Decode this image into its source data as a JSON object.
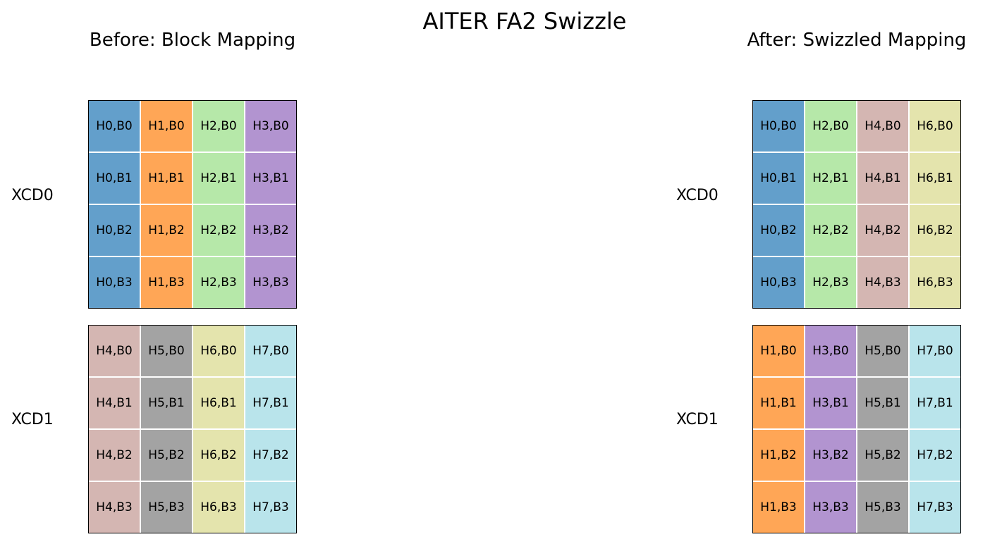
{
  "title": "AITER FA2 Swizzle",
  "colors": {
    "H0": "#639fcb",
    "H1": "#ffa656",
    "H2": "#b6e8a9",
    "H3": "#b294d0",
    "H4": "#d4b6b2",
    "H5": "#a3a3a3",
    "H6": "#e4e4ad",
    "H7": "#b9e4eb"
  },
  "panels": [
    {
      "title": "Before: Block Mapping",
      "groups": [
        {
          "label": "XCD0",
          "cells": [
            [
              "H0,B0",
              "H1,B0",
              "H2,B0",
              "H3,B0"
            ],
            [
              "H0,B1",
              "H1,B1",
              "H2,B1",
              "H3,B1"
            ],
            [
              "H0,B2",
              "H1,B2",
              "H2,B2",
              "H3,B2"
            ],
            [
              "H0,B3",
              "H1,B3",
              "H2,B3",
              "H3,B3"
            ]
          ]
        },
        {
          "label": "XCD1",
          "cells": [
            [
              "H4,B0",
              "H5,B0",
              "H6,B0",
              "H7,B0"
            ],
            [
              "H4,B1",
              "H5,B1",
              "H6,B1",
              "H7,B1"
            ],
            [
              "H4,B2",
              "H5,B2",
              "H6,B2",
              "H7,B2"
            ],
            [
              "H4,B3",
              "H5,B3",
              "H6,B3",
              "H7,B3"
            ]
          ]
        }
      ]
    },
    {
      "title": "After: Swizzled Mapping",
      "groups": [
        {
          "label": "XCD0",
          "cells": [
            [
              "H0,B0",
              "H2,B0",
              "H4,B0",
              "H6,B0"
            ],
            [
              "H0,B1",
              "H2,B1",
              "H4,B1",
              "H6,B1"
            ],
            [
              "H0,B2",
              "H2,B2",
              "H4,B2",
              "H6,B2"
            ],
            [
              "H0,B3",
              "H2,B3",
              "H4,B3",
              "H6,B3"
            ]
          ]
        },
        {
          "label": "XCD1",
          "cells": [
            [
              "H1,B0",
              "H3,B0",
              "H5,B0",
              "H7,B0"
            ],
            [
              "H1,B1",
              "H3,B1",
              "H5,B1",
              "H7,B1"
            ],
            [
              "H1,B2",
              "H3,B2",
              "H5,B2",
              "H7,B2"
            ],
            [
              "H1,B3",
              "H3,B3",
              "H5,B3",
              "H7,B3"
            ]
          ]
        }
      ]
    }
  ]
}
